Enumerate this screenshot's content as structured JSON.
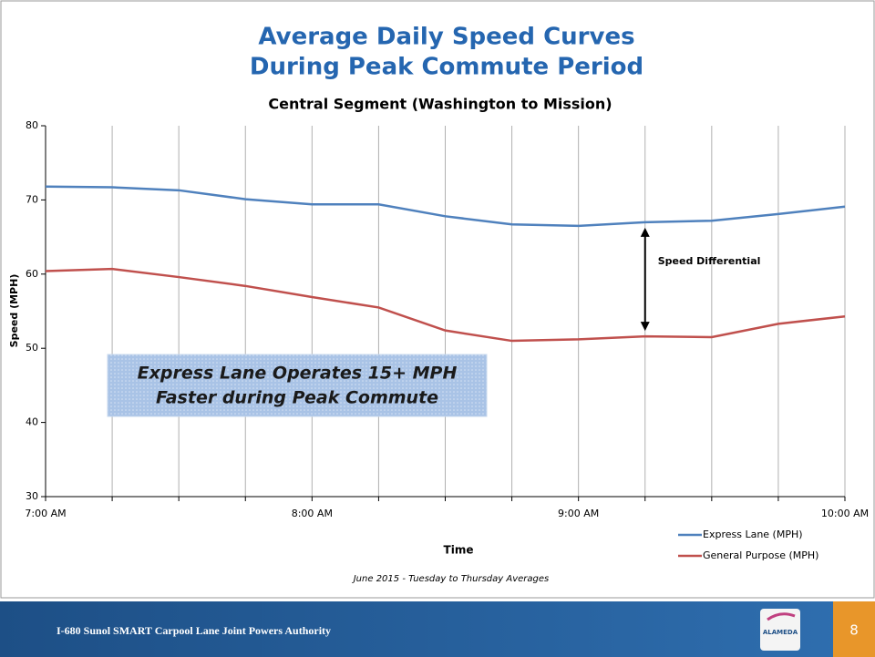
{
  "chart_data": {
    "type": "line",
    "title": [
      "Average Daily Speed Curves",
      "During Peak Commute Period"
    ],
    "subtitle": "Central Segment (Washington to Mission)",
    "x_label": "Time",
    "y_label": "Speed (MPH)",
    "note": "June 2015 - Tuesday to Thursday Averages",
    "categories": [
      "7:00 AM",
      null,
      null,
      null,
      "8:00 AM",
      null,
      null,
      null,
      "9:00 AM",
      null,
      null,
      null,
      "10:00 AM"
    ],
    "series": [
      {
        "name": "Express Lane (MPH)",
        "color": "#4f81bd",
        "values": [
          71.8,
          71.7,
          71.3,
          70.1,
          69.4,
          69.4,
          67.8,
          66.7,
          66.5,
          67.0,
          67.2,
          68.1,
          69.1
        ]
      },
      {
        "name": "General Purpose (MPH)",
        "color": "#c0504d",
        "values": [
          60.4,
          60.7,
          59.6,
          58.4,
          56.9,
          55.5,
          52.4,
          51.0,
          51.2,
          51.6,
          51.5,
          53.3,
          54.3
        ]
      }
    ],
    "ylim": [
      30,
      80
    ],
    "yticks": [
      30,
      40,
      50,
      60,
      70,
      80
    ],
    "grid": "vertical",
    "legend": "bottom-right",
    "annotations": [
      "Speed Differential",
      "Express Lane Operates 15+ MPH",
      "Faster during Peak Commute"
    ]
  },
  "footer": {
    "text": "I-680 Sunol SMART Carpool Lane Joint Powers Authority",
    "logo": "ALAMEDA",
    "page": "8"
  }
}
